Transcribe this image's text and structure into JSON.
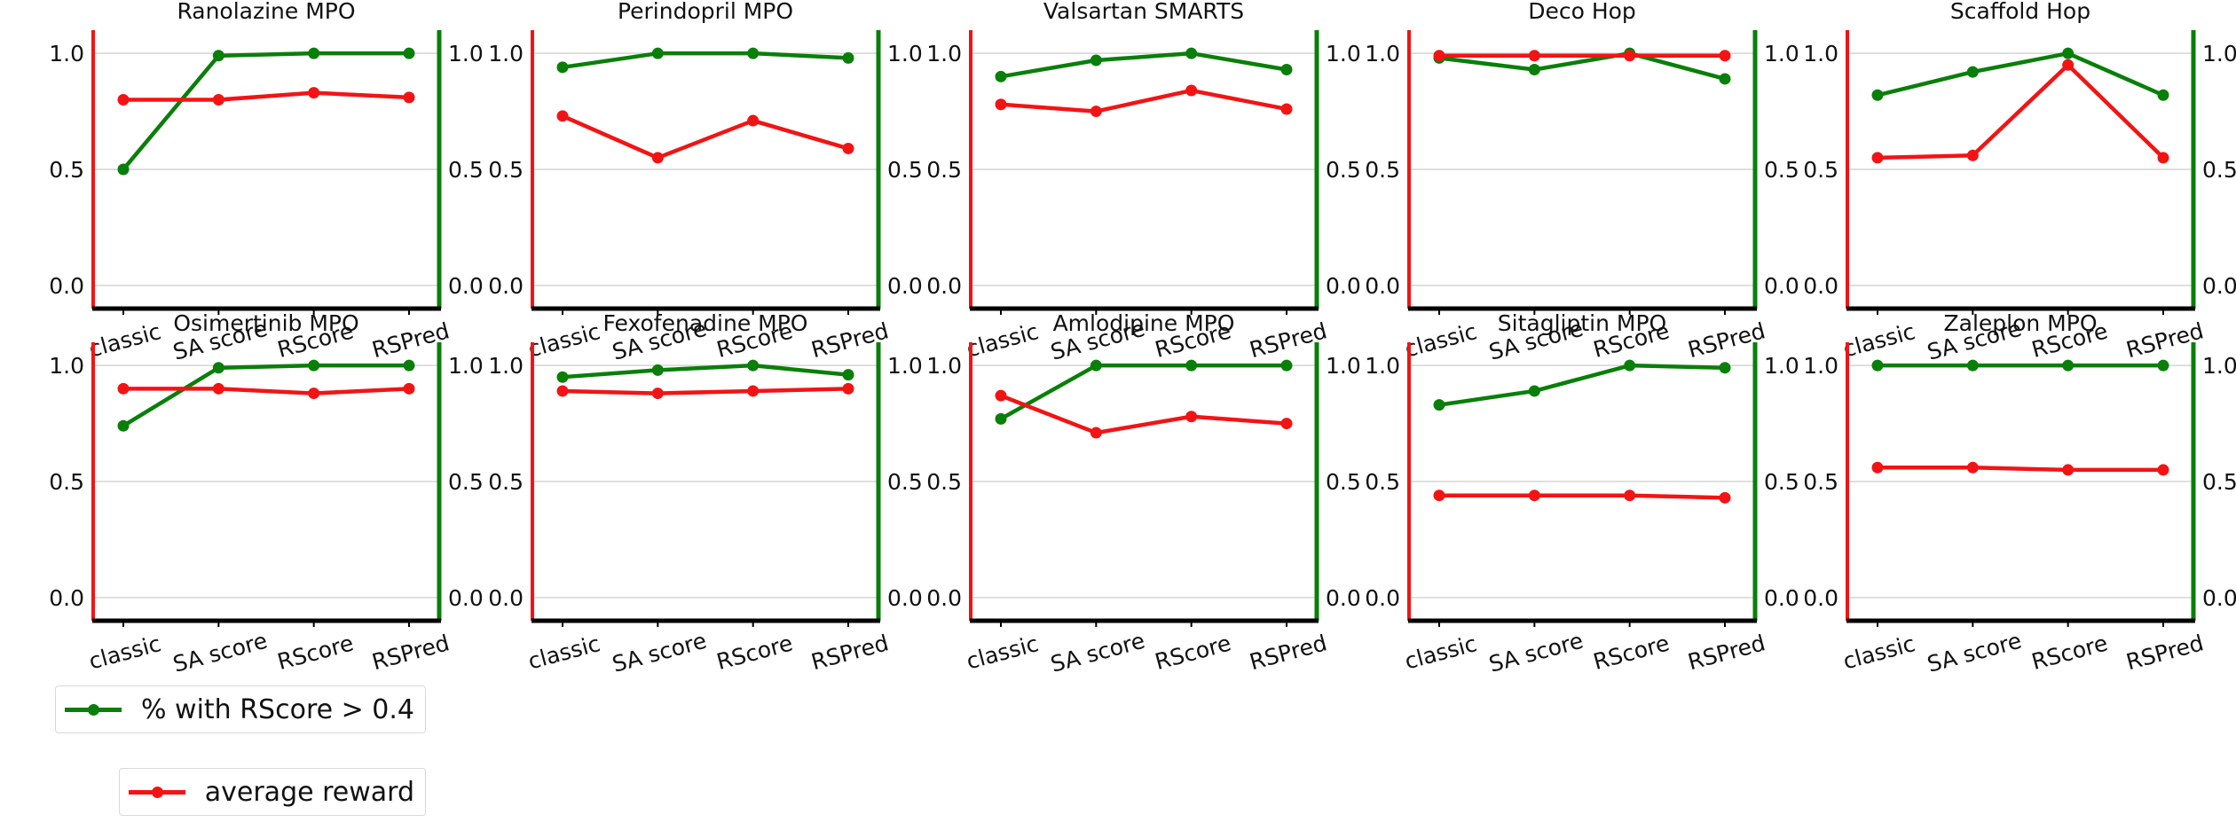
{
  "chart_data": {
    "type": "line",
    "categories": [
      "classic",
      "SA score",
      "RScore",
      "RSPred"
    ],
    "ylim": [
      -0.1,
      1.1
    ],
    "yticks": [
      "0.0",
      "0.5",
      "1.0"
    ],
    "grid": true,
    "legend_placement": "bottom-left",
    "colors": {
      "green": "#097f09",
      "red": "#f21414",
      "axis": "#000000",
      "grid": "#d4d4d4"
    },
    "legend": [
      {
        "name": "% with RScore > 0.4",
        "color": "#097f09"
      },
      {
        "name": "average reward",
        "color": "#f21414"
      }
    ],
    "panels": [
      {
        "title": "Ranolazine MPO",
        "green": [
          0.5,
          0.99,
          1.0,
          1.0
        ],
        "red": [
          0.8,
          0.8,
          0.83,
          0.81
        ]
      },
      {
        "title": "Perindopril MPO",
        "green": [
          0.94,
          1.0,
          1.0,
          0.98
        ],
        "red": [
          0.73,
          0.55,
          0.71,
          0.59
        ]
      },
      {
        "title": "Valsartan SMARTS",
        "green": [
          0.9,
          0.97,
          1.0,
          0.93
        ],
        "red": [
          0.78,
          0.75,
          0.84,
          0.76
        ]
      },
      {
        "title": "Deco Hop",
        "green": [
          0.98,
          0.93,
          1.0,
          0.89
        ],
        "red": [
          0.99,
          0.99,
          0.99,
          0.99
        ]
      },
      {
        "title": "Scaffold Hop",
        "green": [
          0.82,
          0.92,
          1.0,
          0.82
        ],
        "red": [
          0.55,
          0.56,
          0.95,
          0.55
        ]
      },
      {
        "title": "Osimertinib MPO",
        "green": [
          0.74,
          0.99,
          1.0,
          1.0
        ],
        "red": [
          0.9,
          0.9,
          0.88,
          0.9
        ]
      },
      {
        "title": "Fexofenadine MPO",
        "green": [
          0.95,
          0.98,
          1.0,
          0.96
        ],
        "red": [
          0.89,
          0.88,
          0.89,
          0.9
        ]
      },
      {
        "title": "Amlodipine MPO",
        "green": [
          0.77,
          1.0,
          1.0,
          1.0
        ],
        "red": [
          0.87,
          0.71,
          0.78,
          0.75
        ]
      },
      {
        "title": "Sitagliptin MPO",
        "green": [
          0.83,
          0.89,
          1.0,
          0.99
        ],
        "red": [
          0.44,
          0.44,
          0.44,
          0.43
        ]
      },
      {
        "title": "Zaleplon MPO",
        "green": [
          1.0,
          1.0,
          1.0,
          1.0
        ],
        "red": [
          0.56,
          0.56,
          0.55,
          0.55
        ]
      }
    ]
  }
}
